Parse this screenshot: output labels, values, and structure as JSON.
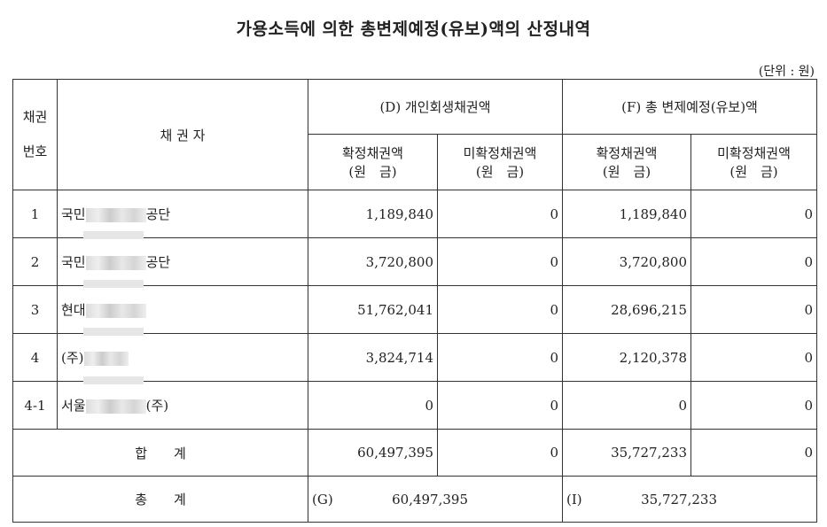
{
  "title": "가용소득에 의한 총변제예정(유보)액의 산정내역",
  "unit": "(단위 : 원)",
  "header": {
    "no_line1": "채권",
    "no_line2": "번호",
    "creditor": "채 권 자",
    "group_d": "(D) 개인회생채권액",
    "group_f": "(F) 총 변제예정(유보)액",
    "confirmed": "확정채권액",
    "unconfirmed": "미확정채권액",
    "principal": "(원　금)"
  },
  "rows": [
    {
      "no": "1",
      "name_prefix": "국민",
      "name_suffix": "공단",
      "d_confirmed": "1,189,840",
      "d_unconfirmed": "0",
      "f_confirmed": "1,189,840",
      "f_unconfirmed": "0"
    },
    {
      "no": "2",
      "name_prefix": "국민",
      "name_suffix": "공단",
      "d_confirmed": "3,720,800",
      "d_unconfirmed": "0",
      "f_confirmed": "3,720,800",
      "f_unconfirmed": "0"
    },
    {
      "no": "3",
      "name_prefix": "현대",
      "name_suffix": "",
      "d_confirmed": "51,762,041",
      "d_unconfirmed": "0",
      "f_confirmed": "28,696,215",
      "f_unconfirmed": "0"
    },
    {
      "no": "4",
      "name_prefix": "(주)",
      "name_suffix": "",
      "d_confirmed": "3,824,714",
      "d_unconfirmed": "0",
      "f_confirmed": "2,120,378",
      "f_unconfirmed": "0"
    },
    {
      "no": "4-1",
      "name_prefix": "서울",
      "name_suffix": "(주)",
      "d_confirmed": "0",
      "d_unconfirmed": "0",
      "f_confirmed": "0",
      "f_unconfirmed": "0"
    }
  ],
  "subtotal": {
    "label": "합　　계",
    "d_confirmed": "60,497,395",
    "d_unconfirmed": "0",
    "f_confirmed": "35,727,233",
    "f_unconfirmed": "0"
  },
  "total": {
    "label": "총　　계",
    "g_label": "(G)",
    "g_value": "60,497,395",
    "i_label": "(I)",
    "i_value": "35,727,233"
  }
}
